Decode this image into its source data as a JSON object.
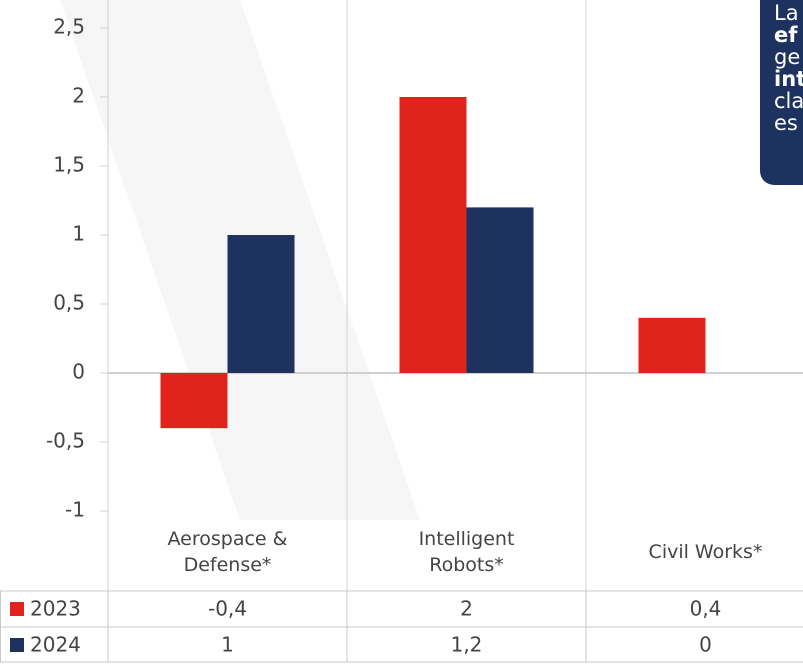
{
  "chart_data": {
    "type": "bar",
    "categories": [
      "Aerospace & Defense*",
      "Intelligent Robots*",
      "Civil Works*"
    ],
    "series": [
      {
        "name": "2023",
        "color": "#e0231d",
        "values": [
          -0.4,
          2,
          0.4
        ],
        "value_labels": [
          "-0,4",
          "2",
          "0,4"
        ]
      },
      {
        "name": "2024",
        "color": "#1e3260",
        "values": [
          1,
          1.2,
          0
        ],
        "value_labels": [
          "1",
          "1,2",
          "0"
        ]
      }
    ],
    "ylim": [
      -1,
      2.5
    ],
    "yticks": [
      {
        "value": 2.5,
        "label": "2,5"
      },
      2,
      {
        "value": 1.5,
        "label": "1,5"
      },
      1,
      {
        "value": 0.5,
        "label": "0,5"
      },
      0,
      {
        "value": -0.5,
        "label": "-0,5"
      },
      -1
    ],
    "callout": [
      "La",
      "ef",
      "ge",
      "int",
      "cla",
      "es"
    ]
  }
}
